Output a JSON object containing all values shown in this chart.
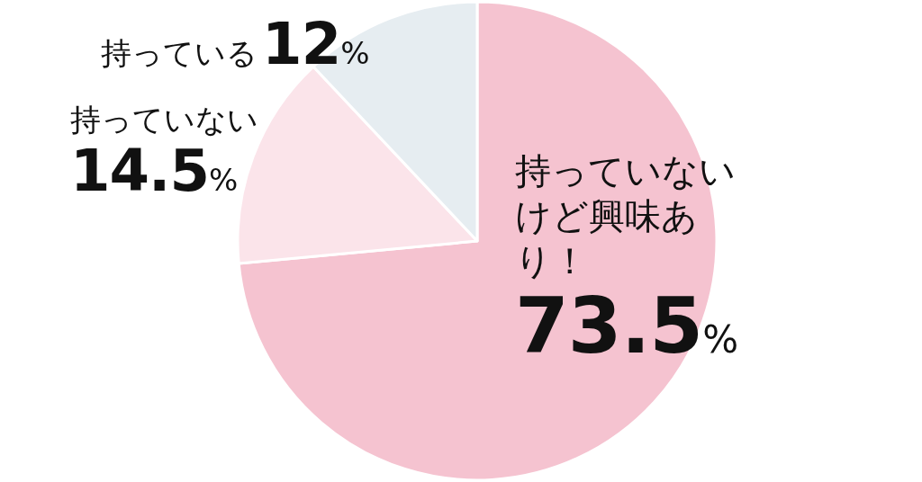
{
  "chart_data": {
    "type": "pie",
    "categories": [
      "持っていないけど興味あり！",
      "持っていない",
      "持っている"
    ],
    "values": [
      73.5,
      14.5,
      12
    ],
    "colors": [
      "#f5c3d0",
      "#fbe4ea",
      "#e6edf1"
    ],
    "value_labels": [
      "73.5%",
      "14.5%",
      "12%"
    ]
  }
}
